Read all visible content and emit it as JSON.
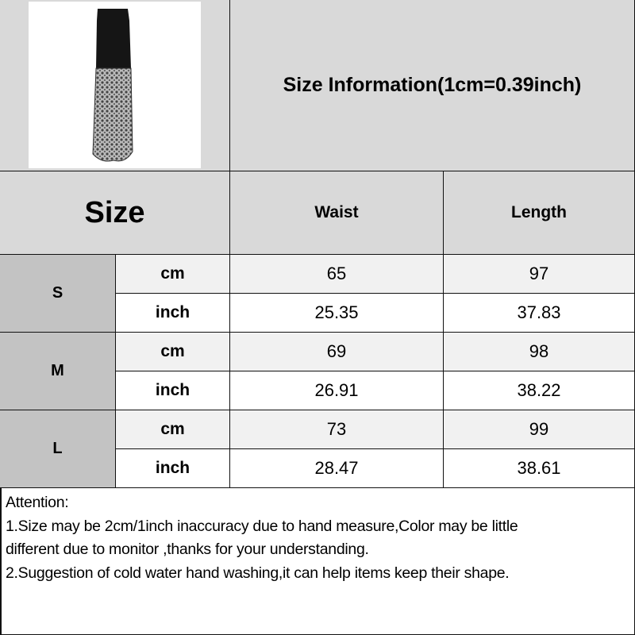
{
  "title": "Size Information(1cm=0.39inch)",
  "product_image": "black-lace-maxi-skirt",
  "header": {
    "size": "Size",
    "columns": [
      "Waist",
      "Length"
    ]
  },
  "rows": [
    {
      "size": "S",
      "cm": {
        "unit": "cm",
        "waist": "65",
        "length": "97"
      },
      "inch": {
        "unit": "inch",
        "waist": "25.35",
        "length": "37.83"
      }
    },
    {
      "size": "M",
      "cm": {
        "unit": "cm",
        "waist": "69",
        "length": "98"
      },
      "inch": {
        "unit": "inch",
        "waist": "26.91",
        "length": "38.22"
      }
    },
    {
      "size": "L",
      "cm": {
        "unit": "cm",
        "waist": "73",
        "length": "99"
      },
      "inch": {
        "unit": "inch",
        "waist": "28.47",
        "length": "38.61"
      }
    }
  ],
  "notes": [
    "Attention:",
    "1.Size may be 2cm/1inch inaccuracy due to hand measure,Color may be little",
    "different due to monitor ,thanks for your understanding.",
    "2.Suggestion of cold water hand washing,it can help items keep their shape."
  ]
}
